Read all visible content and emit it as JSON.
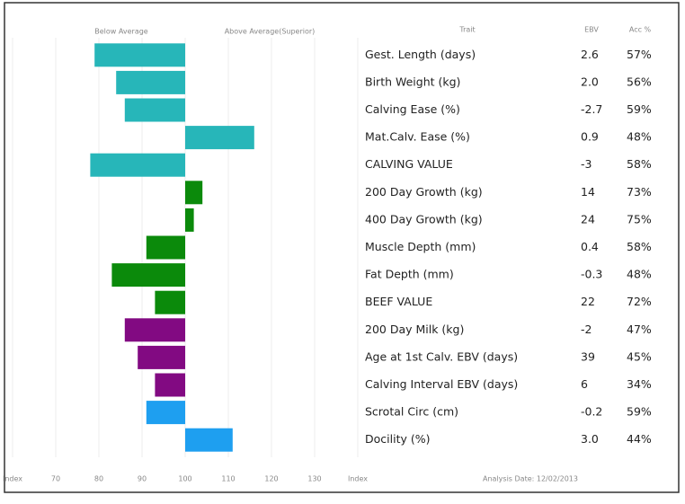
{
  "chart_data": {
    "type": "bar",
    "below_label": "Below Average",
    "above_label": "Above Average(Superior)",
    "headers": [
      "Trait",
      "EBV",
      "Acc %"
    ],
    "categories": [
      "Gest. Length (days)",
      "Birth Weight (kg)",
      "Calving Ease (%)",
      "Mat.Calv. Ease (%)",
      "CALVING VALUE",
      "200 Day Growth (kg)",
      "400 Day Growth (kg)",
      "Muscle Depth (mm)",
      "Fat Depth (mm)",
      "BEEF VALUE",
      "200 Day Milk (kg)",
      "Age at 1st Calv. EBV (days)",
      "Calving Interval EBV (days)",
      "Scrotal Circ (cm)",
      "Docility (%)"
    ],
    "values": [
      79,
      84,
      86,
      116,
      78,
      104,
      102,
      91,
      83,
      93,
      86,
      89,
      93,
      91,
      111
    ],
    "colors": [
      "#27b6b9",
      "#27b6b9",
      "#27b6b9",
      "#27b6b9",
      "#27b6b9",
      "#0b8a0b",
      "#0b8a0b",
      "#0b8a0b",
      "#0b8a0b",
      "#0b8a0b",
      "#820a82",
      "#820a82",
      "#820a82",
      "#1e9ff0",
      "#1e9ff0"
    ],
    "ebv": [
      "2.6",
      "2.0",
      "-2.7",
      "0.9",
      "-3",
      "14",
      "24",
      "0.4",
      "-0.3",
      "22",
      "-2",
      "39",
      "6",
      "-0.2",
      "3.0"
    ],
    "acc": [
      "57%",
      "56%",
      "59%",
      "48%",
      "58%",
      "73%",
      "75%",
      "58%",
      "48%",
      "72%",
      "47%",
      "45%",
      "34%",
      "59%",
      "44%"
    ],
    "base": 100,
    "xlim": [
      60,
      140
    ],
    "xticks": [
      {
        "value": 60,
        "label": "Index"
      },
      70,
      80,
      90,
      100,
      110,
      120,
      130,
      {
        "value": 140,
        "label": "Index"
      }
    ],
    "grid": true,
    "footer": "Analysis Date: 12/02/2013"
  }
}
